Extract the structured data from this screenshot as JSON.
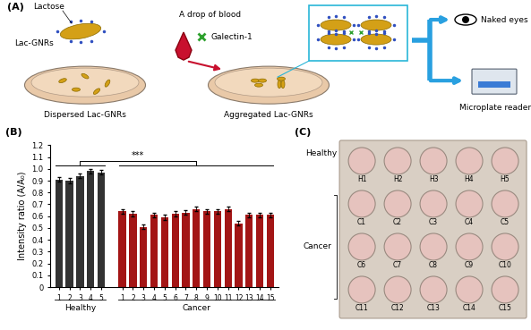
{
  "panel_labels": [
    "(A)",
    "(B)",
    "(C)"
  ],
  "diagram": {
    "lactose": "Lactose",
    "particle": "Lac-GNRs",
    "drop": "A drop of blood",
    "protein": "Galectin-1",
    "start": "Dispersed Lac-GNRs",
    "end": "Aggregated Lac-GNRs",
    "outputs": [
      "Naked eyes",
      "Microplate reader"
    ]
  },
  "chart_data": {
    "type": "bar",
    "y_label": "Intensity ratio (A/A₀)",
    "ylim": [
      0,
      1.2
    ],
    "yticks": [
      0,
      0.1,
      0.2,
      0.3,
      0.4,
      0.5,
      0.6,
      0.7,
      0.8,
      0.9,
      {
        "value": 1,
        "label": "1.0"
      },
      1.1,
      1.2
    ],
    "series": [
      {
        "name": "Healthy",
        "color": "#333333",
        "categories": [
          "1",
          "2",
          "3",
          "4",
          "5"
        ],
        "values": [
          0.91,
          0.9,
          0.94,
          0.98,
          0.97
        ],
        "errors": [
          0.02,
          0.02,
          0.02,
          0.02,
          0.02
        ]
      },
      {
        "name": "Cancer",
        "color": "#a31515",
        "categories": [
          "1",
          "2",
          "3",
          "4",
          "5",
          "6",
          "7",
          "8",
          "9",
          "10",
          "11",
          "12",
          "13",
          "14",
          "15"
        ],
        "values": [
          0.64,
          0.62,
          0.51,
          0.61,
          0.59,
          0.62,
          0.63,
          0.66,
          0.64,
          0.64,
          0.66,
          0.54,
          0.61,
          0.61,
          0.61
        ],
        "errors": [
          0.02,
          0.02,
          0.02,
          0.02,
          0.02,
          0.02,
          0.02,
          0.02,
          0.02,
          0.02,
          0.02,
          0.02,
          0.02,
          0.02,
          0.02
        ]
      }
    ],
    "annotations": [
      {
        "text": "***"
      }
    ]
  },
  "plate": {
    "color": "#e6c3be",
    "groups": [
      {
        "label": "Healthy",
        "rows": [
          [
            "H1",
            "H2",
            "H3",
            "H4",
            "H5"
          ]
        ]
      },
      {
        "label": "Cancer",
        "rows": [
          [
            "C1",
            "C2",
            "C3",
            "C4",
            "C5"
          ],
          [
            "C6",
            "C7",
            "C8",
            "C9",
            "C10"
          ],
          [
            "C11",
            "C12",
            "C13",
            "C14",
            "C15"
          ]
        ]
      }
    ]
  }
}
